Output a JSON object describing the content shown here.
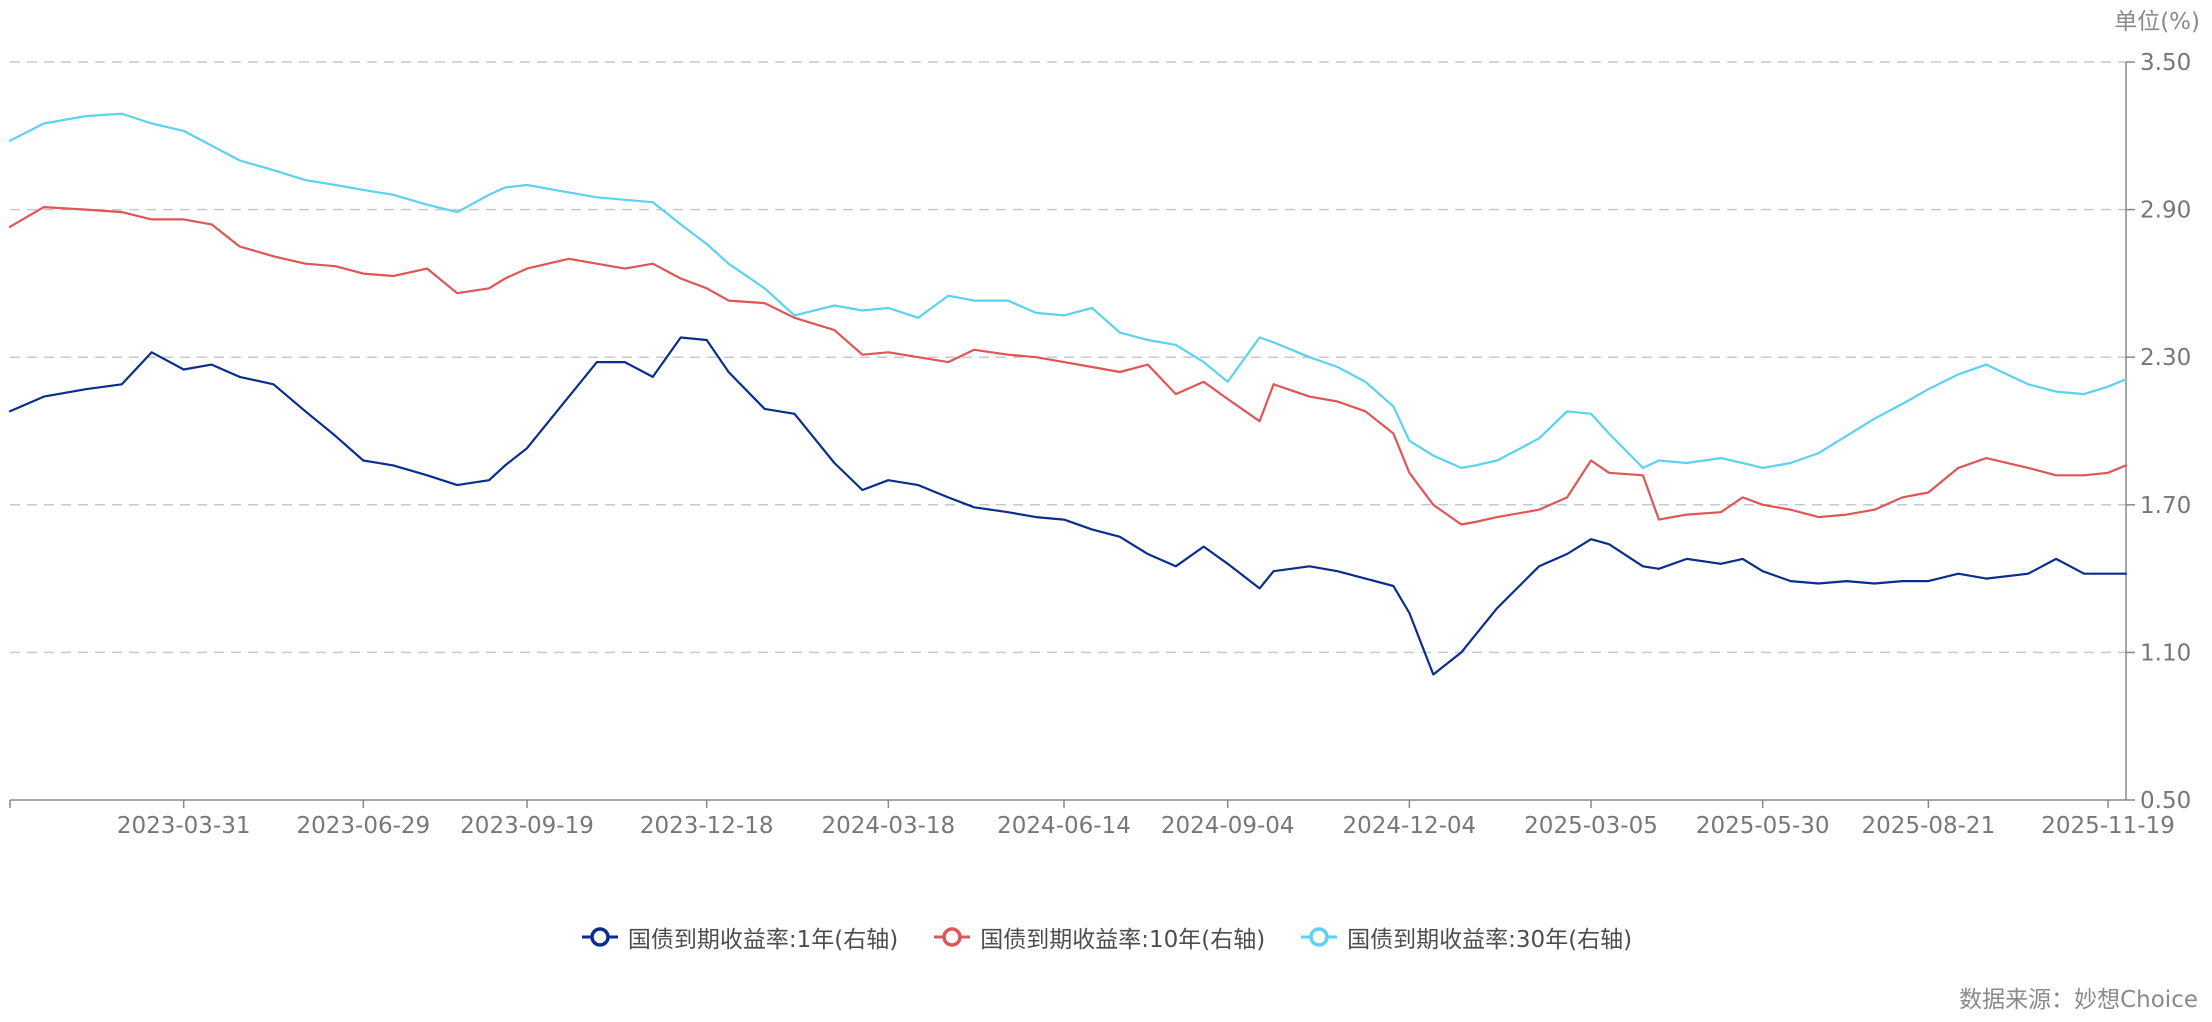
{
  "unit_label": "单位(%)",
  "source_label": "数据来源：妙想Choice",
  "chart_data": {
    "type": "line",
    "title": "",
    "xlabel": "",
    "ylabel": "单位(%)",
    "y_axis_position": "right",
    "ylim": [
      0.5,
      3.5
    ],
    "yticks": [
      "3.50",
      "2.90",
      "2.30",
      "1.70",
      "1.10",
      "0.50"
    ],
    "grid": true,
    "legend_position": "bottom-center",
    "x": [
      "2023-01-03",
      "2023-01-20",
      "2023-02-10",
      "2023-02-28",
      "2023-03-15",
      "2023-03-31",
      "2023-04-14",
      "2023-04-28",
      "2023-05-15",
      "2023-05-31",
      "2023-06-15",
      "2023-06-29",
      "2023-07-14",
      "2023-07-31",
      "2023-08-15",
      "2023-08-31",
      "2023-09-08",
      "2023-09-19",
      "2023-10-10",
      "2023-10-24",
      "2023-11-07",
      "2023-11-21",
      "2023-12-05",
      "2023-12-18",
      "2023-12-29",
      "2024-01-16",
      "2024-01-31",
      "2024-02-20",
      "2024-03-05",
      "2024-03-18",
      "2024-04-02",
      "2024-04-17",
      "2024-04-30",
      "2024-05-17",
      "2024-05-31",
      "2024-06-14",
      "2024-06-28",
      "2024-07-12",
      "2024-07-26",
      "2024-08-09",
      "2024-08-23",
      "2024-09-04",
      "2024-09-20",
      "2024-09-27",
      "2024-10-15",
      "2024-10-29",
      "2024-11-12",
      "2024-11-26",
      "2024-12-04",
      "2024-12-16",
      "2024-12-30",
      "2025-01-06",
      "2025-01-17",
      "2025-02-07",
      "2025-02-21",
      "2025-03-05",
      "2025-03-14",
      "2025-03-31",
      "2025-04-08",
      "2025-04-22",
      "2025-05-09",
      "2025-05-20",
      "2025-05-30",
      "2025-06-13",
      "2025-06-27",
      "2025-07-11",
      "2025-07-25",
      "2025-08-08",
      "2025-08-21",
      "2025-09-05",
      "2025-09-19",
      "2025-10-10",
      "2025-10-24",
      "2025-11-07",
      "2025-11-19",
      "2025-11-28"
    ],
    "xticks": [
      "2023-03-31",
      "2023-06-29",
      "2023-09-19",
      "2023-12-18",
      "2024-03-18",
      "2024-06-14",
      "2024-09-04",
      "2024-12-04",
      "2025-03-05",
      "2025-05-30",
      "2025-08-21",
      "2025-11-19"
    ],
    "series": [
      {
        "name": "国债到期收益率:1年(右轴)",
        "color": "#0b2d8c",
        "values": [
          2.08,
          2.14,
          2.17,
          2.19,
          2.32,
          2.25,
          2.27,
          2.22,
          2.19,
          2.08,
          1.98,
          1.88,
          1.86,
          1.82,
          1.78,
          1.8,
          1.86,
          1.93,
          2.14,
          2.28,
          2.28,
          2.22,
          2.38,
          2.37,
          2.24,
          2.09,
          2.07,
          1.87,
          1.76,
          1.8,
          1.78,
          1.73,
          1.69,
          1.67,
          1.65,
          1.64,
          1.6,
          1.57,
          1.5,
          1.45,
          1.53,
          1.46,
          1.36,
          1.43,
          1.45,
          1.43,
          1.4,
          1.37,
          1.26,
          1.01,
          1.1,
          1.17,
          1.28,
          1.45,
          1.5,
          1.56,
          1.54,
          1.45,
          1.44,
          1.48,
          1.46,
          1.48,
          1.43,
          1.39,
          1.38,
          1.39,
          1.38,
          1.39,
          1.39,
          1.42,
          1.4,
          1.42,
          1.48,
          1.42,
          1.42,
          1.42
        ]
      },
      {
        "name": "国债到期收益率:10年(右轴)",
        "color": "#e05555",
        "values": [
          2.83,
          2.91,
          2.9,
          2.89,
          2.86,
          2.86,
          2.84,
          2.75,
          2.71,
          2.68,
          2.67,
          2.64,
          2.63,
          2.66,
          2.56,
          2.58,
          2.62,
          2.66,
          2.7,
          2.68,
          2.66,
          2.68,
          2.62,
          2.58,
          2.53,
          2.52,
          2.46,
          2.41,
          2.31,
          2.32,
          2.3,
          2.28,
          2.33,
          2.31,
          2.3,
          2.28,
          2.26,
          2.24,
          2.27,
          2.15,
          2.2,
          2.13,
          2.04,
          2.19,
          2.14,
          2.12,
          2.08,
          1.99,
          1.83,
          1.7,
          1.62,
          1.63,
          1.65,
          1.68,
          1.73,
          1.88,
          1.83,
          1.82,
          1.64,
          1.66,
          1.67,
          1.73,
          1.7,
          1.68,
          1.65,
          1.66,
          1.68,
          1.73,
          1.75,
          1.85,
          1.89,
          1.85,
          1.82,
          1.82,
          1.83,
          1.86
        ]
      },
      {
        "name": "国债到期收益率:30年(右轴)",
        "color": "#5bd2f0",
        "values": [
          3.18,
          3.25,
          3.28,
          3.29,
          3.25,
          3.22,
          3.16,
          3.1,
          3.06,
          3.02,
          3.0,
          2.98,
          2.96,
          2.92,
          2.89,
          2.96,
          2.99,
          3.0,
          2.97,
          2.95,
          2.94,
          2.93,
          2.84,
          2.76,
          2.68,
          2.58,
          2.47,
          2.51,
          2.49,
          2.5,
          2.46,
          2.55,
          2.53,
          2.53,
          2.48,
          2.47,
          2.5,
          2.4,
          2.37,
          2.35,
          2.28,
          2.2,
          2.38,
          2.36,
          2.3,
          2.26,
          2.2,
          2.1,
          1.96,
          1.9,
          1.85,
          1.86,
          1.88,
          1.97,
          2.08,
          2.07,
          1.99,
          1.85,
          1.88,
          1.87,
          1.89,
          1.87,
          1.85,
          1.87,
          1.91,
          1.98,
          2.05,
          2.11,
          2.17,
          2.23,
          2.27,
          2.19,
          2.16,
          2.15,
          2.18,
          2.21
        ]
      }
    ]
  }
}
